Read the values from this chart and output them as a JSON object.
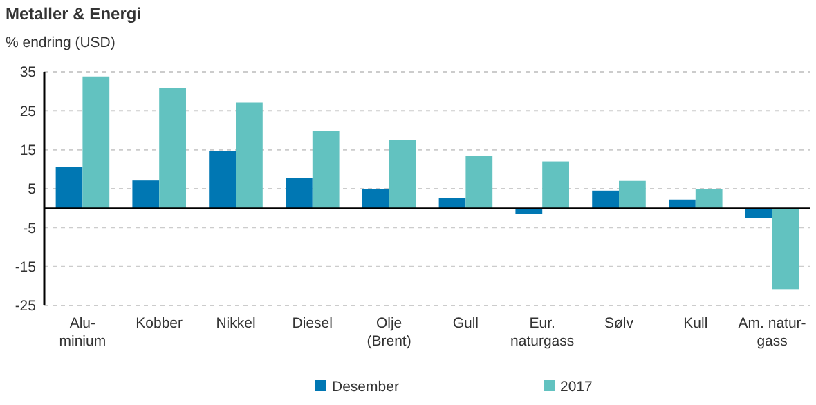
{
  "chart_data": {
    "type": "bar",
    "title": "Metaller & Energi",
    "ylabel": "% endring (USD)",
    "categories": [
      "Alu-\nminium",
      "Kobber",
      "Nikkel",
      "Diesel",
      "Olje\n(Brent)",
      "Gull",
      "Eur.\nnaturgass",
      "Sølv",
      "Kull",
      "Am. natur-\ngass"
    ],
    "series": [
      {
        "name": "Desember",
        "color": "#0077b3",
        "values": [
          10.6,
          7.1,
          14.7,
          7.7,
          5.0,
          2.6,
          -1.4,
          4.5,
          2.2,
          -2.6
        ]
      },
      {
        "name": "2017",
        "color": "#62c2c0",
        "values": [
          33.8,
          30.8,
          27.1,
          19.8,
          17.6,
          13.5,
          12.0,
          7.0,
          4.9,
          -20.8
        ]
      }
    ],
    "ylim": [
      -25,
      35
    ],
    "yticks": [
      35,
      25,
      15,
      5,
      -5,
      -15,
      -25
    ],
    "grid": "y",
    "legend": "bottom"
  }
}
